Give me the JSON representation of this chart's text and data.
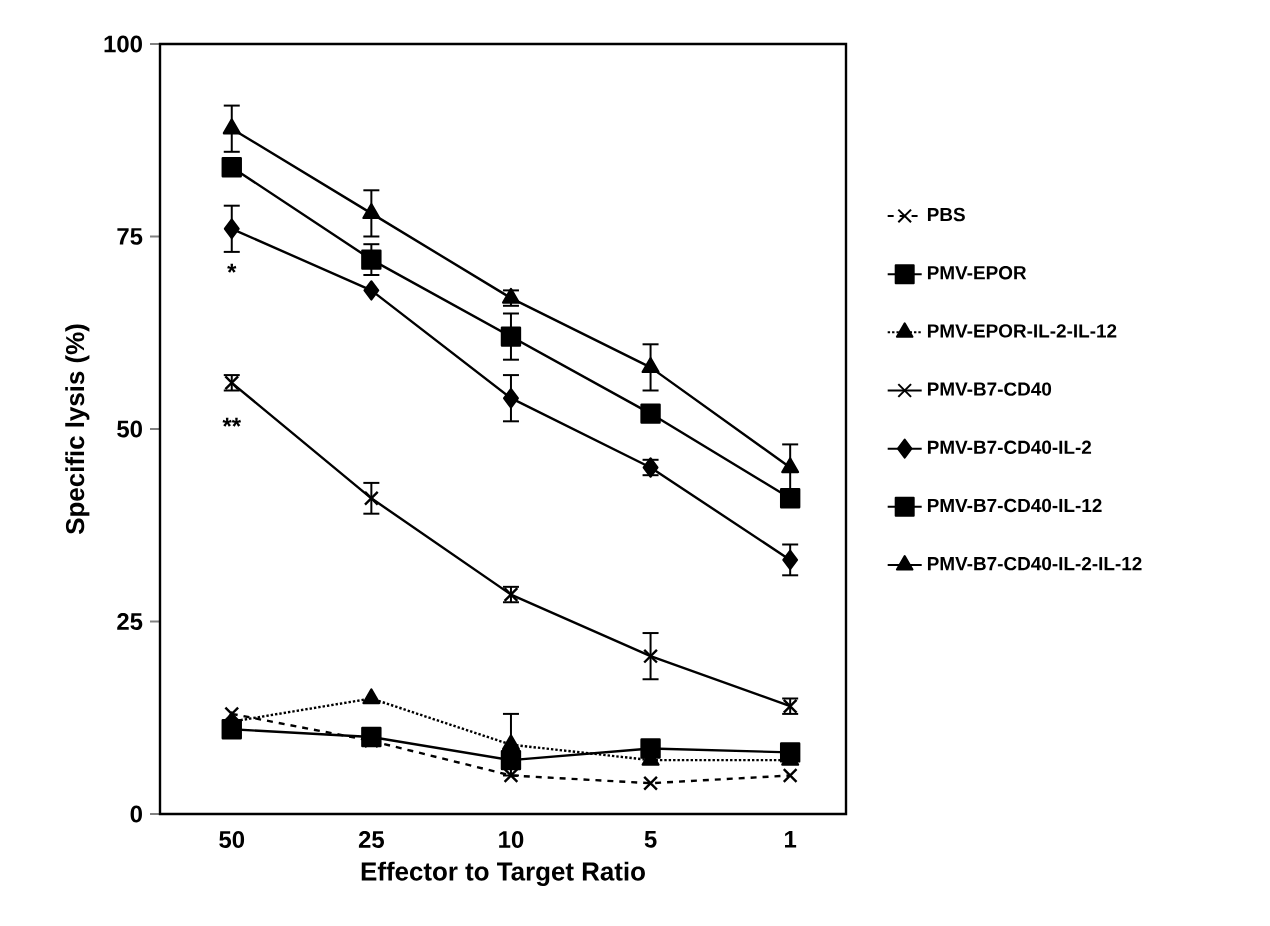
{
  "chart_data": {
    "type": "line",
    "xlabel": "Effector to Target Ratio",
    "ylabel": "Specific lysis (%)",
    "categories": [
      "50",
      "25",
      "10",
      "5",
      "1"
    ],
    "ylim": [
      0,
      100
    ],
    "yticks": [
      0,
      25,
      50,
      75,
      100
    ],
    "grid": false,
    "legend": "right",
    "series": [
      {
        "name": "PBS",
        "color": "#000000",
        "marker": "cross",
        "line_style": "dashed",
        "values": [
          13,
          9.5,
          5,
          4,
          5
        ]
      },
      {
        "name": "PMV-EPOR",
        "color": "#000000",
        "marker": "square",
        "line_style": "solid",
        "values": [
          11,
          10,
          7,
          8.5,
          8
        ]
      },
      {
        "name": "PMV-EPOR-IL-2-IL-12",
        "color": "#000000",
        "marker": "triangle",
        "line_style": "dotted",
        "values": [
          12,
          15,
          9,
          7,
          7
        ],
        "errors": [
          null,
          null,
          4,
          null,
          null
        ]
      },
      {
        "name": "PMV-B7-CD40",
        "color": "#000000",
        "marker": "cross",
        "line_style": "solid",
        "values": [
          56,
          41,
          28.5,
          20.5,
          14
        ],
        "errors": [
          1,
          2,
          1,
          3,
          1
        ]
      },
      {
        "name": "PMV-B7-CD40-IL-2",
        "color": "#000000",
        "marker": "diamond",
        "line_style": "solid",
        "values": [
          76,
          68,
          54,
          45,
          33
        ],
        "errors": [
          3,
          null,
          3,
          1,
          2
        ]
      },
      {
        "name": "PMV-B7-CD40-IL-12",
        "color": "#000000",
        "marker": "square",
        "line_style": "solid",
        "values": [
          84,
          72,
          62,
          52,
          41
        ],
        "errors": [
          1,
          2,
          3,
          1,
          null
        ]
      },
      {
        "name": "PMV-B7-CD40-IL-2-IL-12",
        "color": "#000000",
        "marker": "triangle",
        "line_style": "solid",
        "values": [
          89,
          78,
          67,
          58,
          45
        ],
        "errors": [
          3,
          3,
          1,
          3,
          3
        ]
      }
    ],
    "annotations": [
      {
        "text": "*",
        "x": "50",
        "y": 76
      },
      {
        "text": "**",
        "x": "50",
        "y": 56
      }
    ]
  }
}
